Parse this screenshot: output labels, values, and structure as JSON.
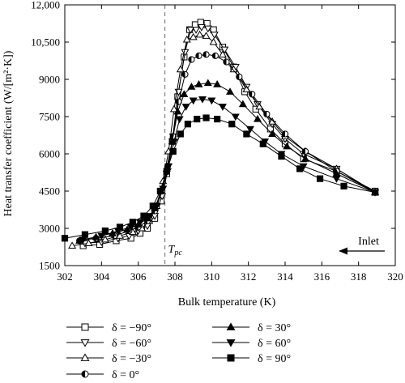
{
  "chart_data": {
    "type": "line",
    "xlabel": "Bulk temperature (K)",
    "ylabel": "Heat transfer coefficient (W/[m²·K])",
    "xlim": [
      302,
      320
    ],
    "ylim": [
      1500,
      12000
    ],
    "xticks": [
      "302",
      "304",
      "306",
      "308",
      "310",
      "312",
      "314",
      "316",
      "318",
      "320"
    ],
    "yticks": [
      "1500",
      "3000",
      "4500",
      "6000",
      "7500",
      "9000",
      "10,500",
      "12,000"
    ],
    "grid": false,
    "legend_placement": "bottom",
    "annotations": {
      "tpc": {
        "text_main": "T",
        "text_sub": "pc",
        "x": 307.45
      },
      "inlet": {
        "text": "Inlet"
      }
    },
    "series": [
      {
        "name": "δ = −90°",
        "marker": "square-open",
        "x": [
          303.0,
          303.9,
          304.8,
          305.6,
          306.1,
          306.5,
          306.9,
          307.25,
          307.55,
          307.85,
          308.15,
          308.5,
          308.8,
          309.1,
          309.4,
          309.75,
          310.1,
          310.6,
          311.2,
          311.8,
          312.4,
          313.2,
          314.0,
          315.0,
          316.8,
          318.9
        ],
        "y": [
          2300,
          2350,
          2500,
          2600,
          2800,
          3000,
          3400,
          4100,
          5200,
          6500,
          8300,
          9900,
          11000,
          11200,
          11300,
          11250,
          11000,
          10300,
          9500,
          8500,
          7800,
          7000,
          6400,
          5800,
          5300,
          4500
        ]
      },
      {
        "name": "δ = −60°",
        "marker": "triangle-down-open",
        "x": [
          303.1,
          304.0,
          304.9,
          305.5,
          306.0,
          306.5,
          306.9,
          307.3,
          307.6,
          307.9,
          308.2,
          308.55,
          308.85,
          309.15,
          309.45,
          309.8,
          310.15,
          310.7,
          311.3,
          311.9,
          312.5,
          313.3,
          314.0,
          315.0,
          316.8,
          318.9
        ],
        "y": [
          2400,
          2450,
          2600,
          2700,
          2900,
          3100,
          3500,
          4300,
          5300,
          6700,
          8500,
          10100,
          11000,
          11000,
          11100,
          11050,
          10800,
          10200,
          9500,
          8700,
          8000,
          7200,
          6600,
          6000,
          5400,
          4450
        ]
      },
      {
        "name": "δ = −30°",
        "marker": "triangle-up-open",
        "x": [
          302.4,
          303.3,
          304.2,
          305.0,
          305.7,
          306.2,
          306.6,
          307.0,
          307.35,
          307.65,
          307.95,
          308.3,
          308.65,
          309.0,
          309.35,
          309.7,
          310.1,
          310.6,
          311.2,
          311.9,
          312.6,
          313.3,
          314.0,
          315.1,
          316.8,
          318.9
        ],
        "y": [
          2300,
          2400,
          2550,
          2700,
          2850,
          3000,
          3300,
          3900,
          4900,
          6100,
          7800,
          9400,
          10600,
          10700,
          10800,
          10750,
          10500,
          10000,
          9400,
          8600,
          7900,
          7300,
          6700,
          6100,
          5400,
          4450
        ]
      },
      {
        "name": "δ = 0°",
        "marker": "circle-half",
        "x": [
          302.8,
          303.7,
          304.7,
          305.5,
          306.0,
          306.5,
          306.9,
          307.3,
          307.6,
          307.9,
          308.2,
          308.55,
          308.9,
          309.3,
          309.7,
          310.2,
          310.8,
          311.5,
          312.2,
          313.0,
          314.0,
          315.1,
          316.8,
          318.9
        ],
        "y": [
          2500,
          2600,
          2700,
          2900,
          3050,
          3300,
          3700,
          4500,
          5500,
          6700,
          8100,
          9200,
          9800,
          9950,
          10000,
          9950,
          9700,
          9100,
          8400,
          7600,
          6800,
          6100,
          5300,
          4450
        ]
      },
      {
        "name": "δ = 30°",
        "marker": "triangle-up-filled",
        "x": [
          302.8,
          303.7,
          304.6,
          305.4,
          306.0,
          306.5,
          306.9,
          307.25,
          307.55,
          307.85,
          308.15,
          308.5,
          308.9,
          309.3,
          309.8,
          310.3,
          311.0,
          311.7,
          312.5,
          313.3,
          314.1,
          315.1,
          316.8,
          318.9
        ],
        "y": [
          2500,
          2650,
          2800,
          2950,
          3150,
          3400,
          3800,
          4500,
          5400,
          6500,
          7700,
          8400,
          8700,
          8800,
          8850,
          8800,
          8500,
          8000,
          7400,
          6800,
          6300,
          5800,
          5200,
          4450
        ]
      },
      {
        "name": "δ = 60°",
        "marker": "triangle-down-filled",
        "x": [
          303.0,
          304.0,
          304.9,
          305.6,
          306.1,
          306.6,
          307.0,
          307.35,
          307.65,
          307.95,
          308.25,
          308.6,
          309.0,
          309.5,
          310.0,
          310.6,
          311.3,
          312.1,
          312.9,
          313.8,
          315.0,
          316.8,
          318.9
        ],
        "y": [
          2550,
          2700,
          2900,
          3050,
          3250,
          3500,
          3900,
          4600,
          5500,
          6500,
          7400,
          7900,
          8150,
          8200,
          8150,
          7900,
          7500,
          7000,
          6500,
          6000,
          5500,
          5000,
          4450
        ]
      },
      {
        "name": "δ = 90°",
        "marker": "square-filled",
        "x": [
          302.0,
          303.1,
          304.2,
          305.0,
          305.7,
          306.3,
          306.8,
          307.2,
          307.55,
          307.9,
          308.3,
          308.7,
          309.2,
          309.7,
          310.3,
          311.1,
          311.9,
          312.8,
          313.8,
          314.8,
          315.9,
          317.2,
          318.9
        ],
        "y": [
          2600,
          2750,
          2900,
          3050,
          3250,
          3500,
          3900,
          4500,
          5300,
          6100,
          6800,
          7200,
          7400,
          7450,
          7400,
          7200,
          6800,
          6400,
          5900,
          5400,
          5000,
          4700,
          4450
        ]
      }
    ]
  }
}
